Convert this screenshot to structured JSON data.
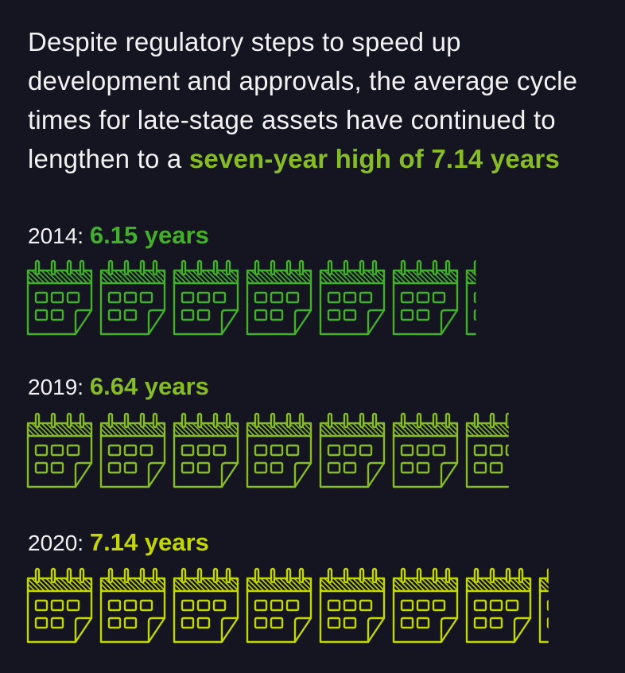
{
  "headline": {
    "text": "Despite regulatory steps to speed up development and approvals, the average cycle times for late-stage assets have continued to lengthen to a ",
    "highlight": "seven-year high of 7.14 years"
  },
  "colors": {
    "background": "#141520",
    "highlight": "#86bc25",
    "row_2014": "#43b02a",
    "row_2019": "#86bc25",
    "row_2020": "#c4d600"
  },
  "chart_data": {
    "type": "pictogram",
    "unit": "calendar icon = 1 year",
    "categories": [
      "2014",
      "2019",
      "2020"
    ],
    "values": [
      6.15,
      6.64,
      7.14
    ],
    "rows": [
      {
        "year": "2014",
        "prefix": "2014: ",
        "value_label": "6.15 years",
        "value": 6.15,
        "color": "#43b02a"
      },
      {
        "year": "2019",
        "prefix": "2019: ",
        "value_label": "6.64 years",
        "value": 6.64,
        "color": "#86bc25"
      },
      {
        "year": "2020",
        "prefix": "2020: ",
        "value_label": "7.14 years",
        "value": 7.14,
        "color": "#c4d600"
      }
    ]
  }
}
